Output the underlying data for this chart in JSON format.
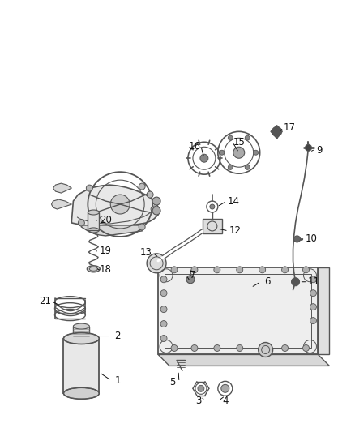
{
  "bg_color": "#ffffff",
  "line_color": "#555555",
  "label_color": "#111111",
  "figsize": [
    4.38,
    5.33
  ],
  "dpi": 100
}
